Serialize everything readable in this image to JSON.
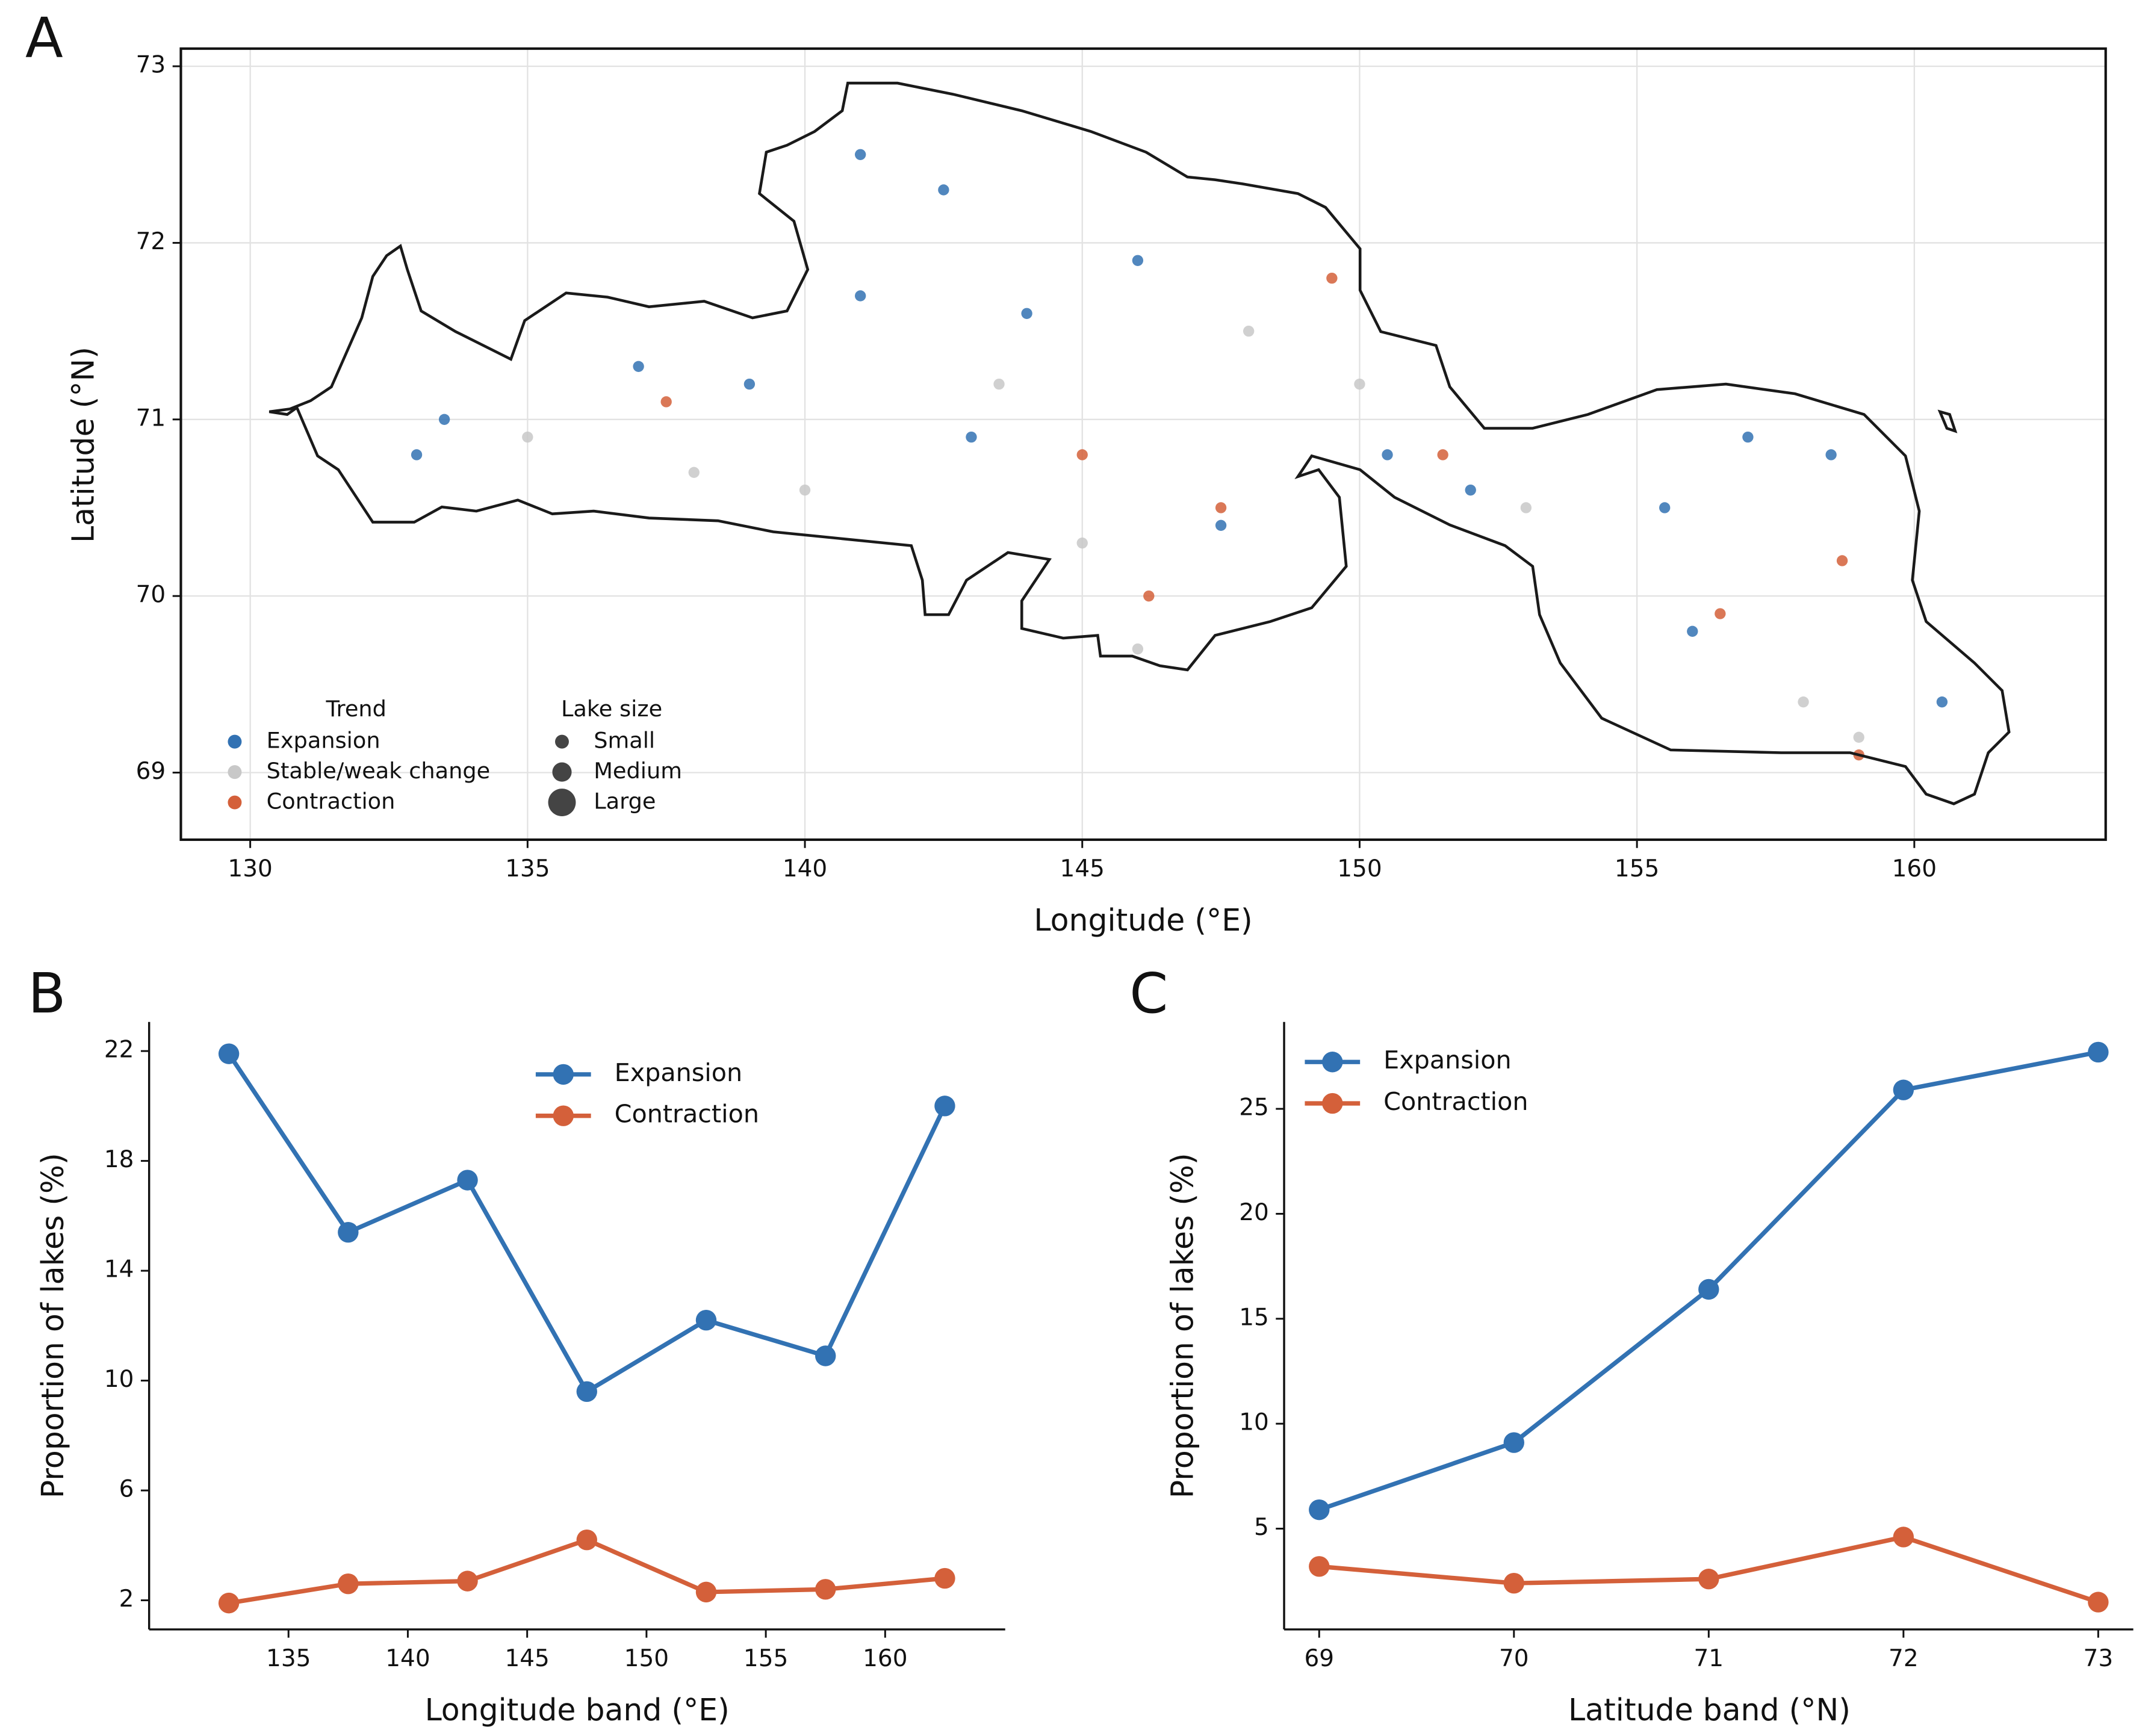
{
  "chart_data": [
    {
      "type": "scatter",
      "panel_label": "A",
      "x_label": "Longitude (°E)",
      "y_label": "Latitude (°N)",
      "xlim": [
        128.75,
        163.45
      ],
      "ylim": [
        68.62,
        73.1
      ],
      "xticks": [
        130,
        135,
        140,
        145,
        150,
        155,
        160
      ],
      "yticks": [
        69,
        70,
        71,
        72,
        73
      ],
      "grid": true,
      "legend_title": "Trend",
      "legend": "lower left",
      "size_legend": {
        "title": "Lake size",
        "labels": [
          "Small",
          "Medium",
          "Large"
        ]
      },
      "series": [
        {
          "name": "Expansion",
          "color": "#3272b3",
          "x": [
            133.5,
            137,
            139,
            141,
            142.5,
            144,
            146,
            147.5,
            143,
            152,
            155.5,
            157,
            158.5,
            160.5,
            156,
            133,
            141,
            150.5
          ],
          "y": [
            71.0,
            71.3,
            71.2,
            71.7,
            72.3,
            71.6,
            71.9,
            70.4,
            70.9,
            70.6,
            70.5,
            70.9,
            70.8,
            69.4,
            69.8,
            70.8,
            72.5,
            70.8
          ]
        },
        {
          "name": "Stable/weak change",
          "color": "#c8c8c8",
          "x": [
            135,
            140,
            145,
            146,
            150,
            153,
            158,
            159,
            138,
            148,
            143.5
          ],
          "y": [
            70.9,
            70.6,
            70.3,
            69.7,
            71.2,
            70.5,
            69.4,
            69.2,
            70.7,
            71.5,
            71.2
          ]
        },
        {
          "name": "Contraction",
          "color": "#d4603a",
          "x": [
            145,
            146.2,
            147.5,
            158.7,
            159,
            137.5,
            149.5,
            156.5,
            151.5
          ],
          "y": [
            70.8,
            70.0,
            70.5,
            70.2,
            69.1,
            71.1,
            71.8,
            69.9,
            70.8
          ]
        }
      ]
    },
    {
      "type": "line",
      "panel_label": "B",
      "x_label": "Longitude band (°E)",
      "y_label": "Proportion of lakes (%)",
      "x": [
        132.5,
        137.5,
        142.5,
        147.5,
        152.5,
        157.5,
        162.5
      ],
      "xlim": [
        129.16,
        165.03
      ],
      "ylim": [
        0.94,
        23.06
      ],
      "xticks": [
        135,
        140,
        145,
        150,
        155,
        160
      ],
      "yticks": [
        2,
        6,
        10,
        14,
        18,
        22
      ],
      "grid": false,
      "legend": "upper center",
      "series": [
        {
          "name": "Expansion",
          "color": "#3272b3",
          "values": [
            21.9,
            15.4,
            17.3,
            9.6,
            12.2,
            10.9,
            20.0
          ]
        },
        {
          "name": "Contraction",
          "color": "#d4603a",
          "values": [
            1.9,
            2.6,
            2.7,
            4.2,
            2.3,
            2.4,
            2.8
          ]
        }
      ]
    },
    {
      "type": "line",
      "panel_label": "C",
      "x_label": "Latitude band (°N)",
      "y_label": "Proportion of lakes (%)",
      "x": [
        69,
        70,
        71,
        72,
        73
      ],
      "xlim": [
        68.82,
        73.18
      ],
      "ylim": [
        0.2,
        29.14
      ],
      "xticks": [
        69,
        70,
        71,
        72,
        73
      ],
      "yticks": [
        5,
        10,
        15,
        20,
        25
      ],
      "grid": false,
      "legend": "upper left",
      "series": [
        {
          "name": "Expansion",
          "color": "#3272b3",
          "values": [
            5.9,
            9.1,
            16.4,
            25.9,
            27.7
          ]
        },
        {
          "name": "Contraction",
          "color": "#d4603a",
          "values": [
            3.2,
            2.4,
            2.6,
            4.6,
            1.5
          ]
        }
      ]
    }
  ]
}
